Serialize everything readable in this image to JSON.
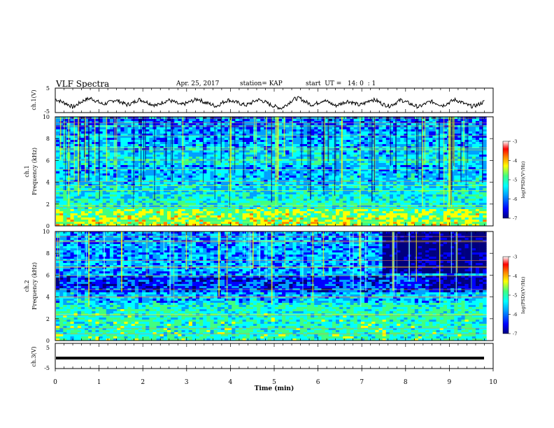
{
  "header": {
    "title": "VLF Spectra",
    "date": "Apr. 25, 2017",
    "station": "station= KAP",
    "start": "start  UT =   14: 0  : 1"
  },
  "chart_data": [
    {
      "type": "line",
      "panel": "waveform-ch1",
      "ylabel": "ch.1(V)",
      "ylim": [
        -5,
        5
      ],
      "yticks": [
        "5",
        "-5"
      ],
      "xlim": [
        0,
        10
      ],
      "description_values": "noisy waveform oscillating roughly between -3 and 1 V",
      "y": [
        0.5,
        -0.5,
        -1.5,
        -2.8,
        -1.2,
        0.3,
        0.8,
        -0.4,
        -1.6,
        -0.9,
        0.2,
        -0.6,
        -1.8,
        -1.1,
        0.4,
        -0.3,
        -1.4,
        -2.1,
        -0.8,
        0.1,
        -0.7,
        -1.9,
        -1.2,
        -0.2,
        0.6,
        -0.8,
        -1.5,
        -2.4,
        -1.0,
        0.2,
        -0.5,
        -1.3,
        -2.0,
        -0.9,
        0.3,
        -0.4,
        -1.7,
        -2.6,
        -3.2,
        -1.4,
        0.5,
        0.9,
        -0.6,
        -1.8,
        -1.1,
        0.1,
        -0.9,
        -2.2,
        -1.3,
        -0.3,
        -1.0,
        -2.0,
        -1.1,
        0.4,
        -0.2,
        -1.6,
        -2.3,
        -1.2,
        0.2,
        -0.8,
        -1.9,
        -2.7,
        -1.5,
        -0.4,
        -1.2,
        -2.1,
        -1.0,
        0.3,
        -0.6,
        -1.8,
        -2.5,
        -1.7,
        -0.5
      ]
    },
    {
      "type": "heatmap",
      "panel": "spectrogram-ch1",
      "ylabel_top": "ch.1",
      "ylabel": "Frequency (kHz)",
      "ylim": [
        0,
        10
      ],
      "yticks": [
        "0",
        "2",
        "4",
        "6",
        "8",
        "10"
      ],
      "xlim": [
        0,
        10
      ],
      "colorbar": {
        "label": "log(PSD)(V²/Hz)",
        "range": [
          -7,
          -3
        ],
        "ticks": [
          "-3",
          "-4",
          "-5",
          "-6",
          "-7"
        ]
      }
    },
    {
      "type": "heatmap",
      "panel": "spectrogram-ch2",
      "ylabel_top": "ch.2",
      "ylabel": "Frequency (kHz)",
      "ylim": [
        0,
        10
      ],
      "yticks": [
        "0",
        "2",
        "4",
        "6",
        "8",
        "10"
      ],
      "xlim": [
        0,
        10
      ],
      "colorbar": {
        "label": "log(PSD)(V²/Hz)",
        "range": [
          -7,
          -3
        ],
        "ticks": [
          "-3",
          "-4",
          "-5",
          "-6",
          "-7"
        ]
      }
    },
    {
      "type": "line",
      "panel": "waveform-ch3",
      "ylabel": "ch.3(V)",
      "ylim": [
        -5,
        5
      ],
      "yticks": [
        "5",
        "-5"
      ],
      "xlim": [
        0,
        10
      ],
      "y": [
        -1,
        -1
      ]
    }
  ],
  "xaxis": {
    "label": "Time  (min)",
    "ticks": [
      "0",
      "1",
      "2",
      "3",
      "4",
      "5",
      "6",
      "7",
      "8",
      "9",
      "10"
    ]
  },
  "colors": {
    "spectrum": [
      "#00007f",
      "#0000ff",
      "#00a0ff",
      "#00ffff",
      "#40ff80",
      "#ffff00",
      "#ff8000",
      "#ff0000",
      "#ffffff"
    ]
  }
}
